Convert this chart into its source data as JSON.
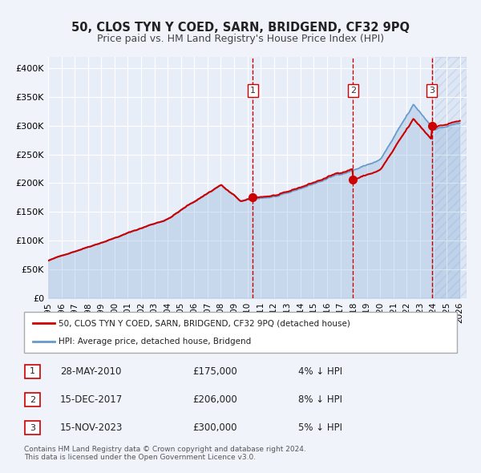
{
  "title": "50, CLOS TYN Y COED, SARN, BRIDGEND, CF32 9PQ",
  "subtitle": "Price paid vs. HM Land Registry's House Price Index (HPI)",
  "xlabel": "",
  "ylabel": "",
  "xlim_start": 1995.0,
  "xlim_end": 2026.5,
  "ylim": [
    0,
    420000
  ],
  "yticks": [
    0,
    50000,
    100000,
    150000,
    200000,
    250000,
    300000,
    350000,
    400000
  ],
  "ytick_labels": [
    "£0",
    "£50K",
    "£100K",
    "£150K",
    "£200K",
    "£250K",
    "£300K",
    "£350K",
    "£400K"
  ],
  "xticks": [
    1995,
    1996,
    1997,
    1998,
    1999,
    2000,
    2001,
    2002,
    2003,
    2004,
    2005,
    2006,
    2007,
    2008,
    2009,
    2010,
    2011,
    2012,
    2013,
    2014,
    2015,
    2016,
    2017,
    2018,
    2019,
    2020,
    2021,
    2022,
    2023,
    2024,
    2025,
    2026
  ],
  "background_color": "#f0f4fa",
  "plot_bg_color": "#f0f4fa",
  "grid_color": "#ffffff",
  "hpi_line_color": "#6699cc",
  "price_line_color": "#cc0000",
  "sale_marker_color": "#cc0000",
  "sale_points": [
    {
      "year": 2010.41,
      "price": 175000,
      "label": "1"
    },
    {
      "year": 2017.96,
      "price": 206000,
      "label": "2"
    },
    {
      "year": 2023.88,
      "price": 300000,
      "label": "3"
    }
  ],
  "vline_color": "#cc0000",
  "vline_style": "--",
  "legend_label_price": "50, CLOS TYN Y COED, SARN, BRIDGEND, CF32 9PQ (detached house)",
  "legend_label_hpi": "HPI: Average price, detached house, Bridgend",
  "table_rows": [
    {
      "num": "1",
      "date": "28-MAY-2010",
      "price": "£175,000",
      "pct": "4% ↓ HPI"
    },
    {
      "num": "2",
      "date": "15-DEC-2017",
      "price": "£206,000",
      "pct": "8% ↓ HPI"
    },
    {
      "num": "3",
      "date": "15-NOV-2023",
      "price": "£300,000",
      "pct": "5% ↓ HPI"
    }
  ],
  "footnote": "Contains HM Land Registry data © Crown copyright and database right 2024.\nThis data is licensed under the Open Government Licence v3.0.",
  "shaded_regions": [
    {
      "start": 2010.41,
      "end": 2026.5
    },
    {
      "start": 2017.96,
      "end": 2026.5
    },
    {
      "start": 2023.88,
      "end": 2026.5
    }
  ]
}
